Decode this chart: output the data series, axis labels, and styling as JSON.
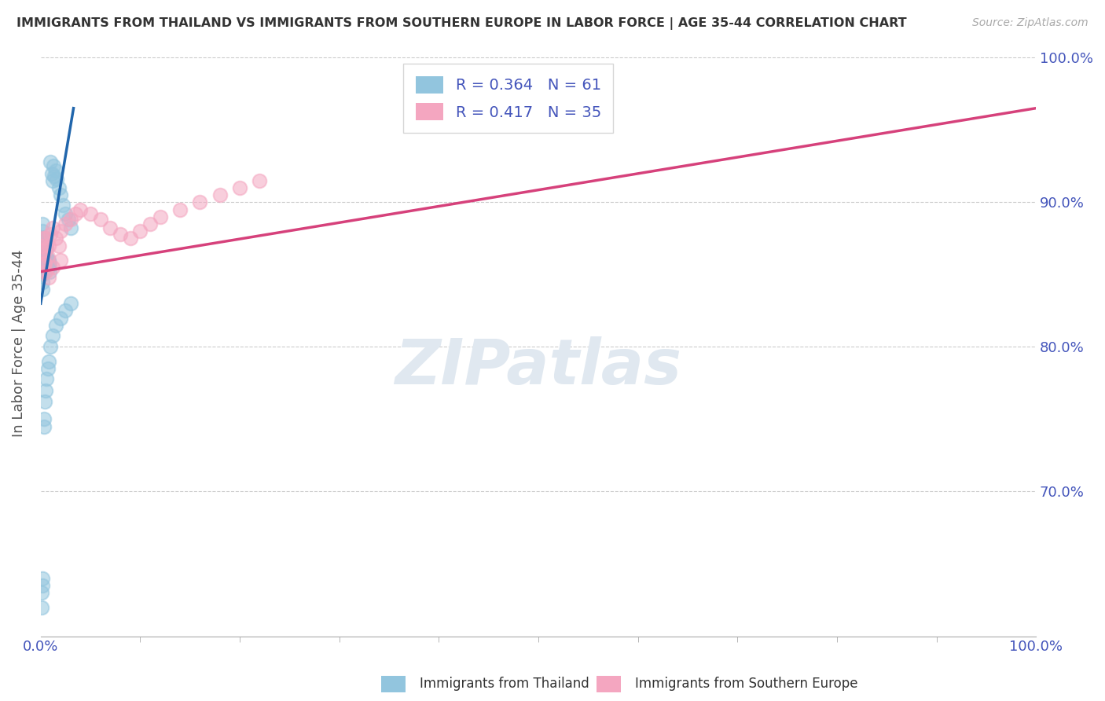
{
  "title": "IMMIGRANTS FROM THAILAND VS IMMIGRANTS FROM SOUTHERN EUROPE IN LABOR FORCE | AGE 35-44 CORRELATION CHART",
  "source": "Source: ZipAtlas.com",
  "ylabel": "In Labor Force | Age 35-44",
  "legend_label1": "Immigrants from Thailand",
  "legend_label2": "Immigrants from Southern Europe",
  "R1": 0.364,
  "N1": 61,
  "R2": 0.417,
  "N2": 35,
  "color1": "#92c5de",
  "color2": "#f4a6c0",
  "line_color1": "#2166ac",
  "line_color2": "#d6417b",
  "axis_label_color": "#4455bb",
  "xlim": [
    0.0,
    1.0
  ],
  "ylim": [
    0.6,
    1.005
  ],
  "yticks": [
    0.7,
    0.8,
    0.9,
    1.0
  ],
  "ytick_labels": [
    "70.0%",
    "80.0%",
    "90.0%",
    "100.0%"
  ],
  "xtick_labels": [
    "0.0%",
    "100.0%"
  ],
  "thailand_x": [
    0.001,
    0.001,
    0.001,
    0.002,
    0.002,
    0.002,
    0.002,
    0.002,
    0.002,
    0.002,
    0.003,
    0.003,
    0.003,
    0.003,
    0.003,
    0.004,
    0.004,
    0.004,
    0.004,
    0.005,
    0.005,
    0.005,
    0.006,
    0.006,
    0.006,
    0.007,
    0.007,
    0.008,
    0.008,
    0.009,
    0.009,
    0.01,
    0.011,
    0.012,
    0.013,
    0.014,
    0.015,
    0.016,
    0.018,
    0.02,
    0.022,
    0.025,
    0.028,
    0.03,
    0.001,
    0.001,
    0.002,
    0.002,
    0.003,
    0.003,
    0.004,
    0.005,
    0.006,
    0.007,
    0.008,
    0.01,
    0.012,
    0.015,
    0.02,
    0.025,
    0.03
  ],
  "thailand_y": [
    0.855,
    0.86,
    0.865,
    0.87,
    0.875,
    0.88,
    0.885,
    0.85,
    0.845,
    0.84,
    0.875,
    0.87,
    0.865,
    0.858,
    0.852,
    0.875,
    0.868,
    0.862,
    0.855,
    0.87,
    0.862,
    0.858,
    0.868,
    0.862,
    0.855,
    0.86,
    0.855,
    0.86,
    0.855,
    0.858,
    0.852,
    0.928,
    0.92,
    0.915,
    0.925,
    0.918,
    0.922,
    0.916,
    0.91,
    0.905,
    0.898,
    0.892,
    0.888,
    0.882,
    0.62,
    0.63,
    0.64,
    0.635,
    0.75,
    0.745,
    0.762,
    0.77,
    0.778,
    0.785,
    0.79,
    0.8,
    0.808,
    0.815,
    0.82,
    0.825,
    0.83
  ],
  "s_europe_x": [
    0.001,
    0.002,
    0.003,
    0.004,
    0.005,
    0.006,
    0.007,
    0.008,
    0.01,
    0.012,
    0.015,
    0.018,
    0.02,
    0.025,
    0.03,
    0.035,
    0.04,
    0.05,
    0.06,
    0.07,
    0.08,
    0.09,
    0.1,
    0.11,
    0.12,
    0.14,
    0.16,
    0.18,
    0.2,
    0.22,
    0.003,
    0.005,
    0.008,
    0.012,
    0.02
  ],
  "s_europe_y": [
    0.87,
    0.875,
    0.865,
    0.858,
    0.875,
    0.868,
    0.862,
    0.87,
    0.878,
    0.882,
    0.875,
    0.87,
    0.88,
    0.885,
    0.888,
    0.892,
    0.895,
    0.892,
    0.888,
    0.882,
    0.878,
    0.875,
    0.88,
    0.885,
    0.89,
    0.895,
    0.9,
    0.905,
    0.91,
    0.915,
    0.858,
    0.852,
    0.848,
    0.855,
    0.86
  ],
  "blue_line_x": [
    0.0,
    0.033
  ],
  "blue_line_y": [
    0.83,
    0.965
  ],
  "pink_line_x": [
    0.0,
    1.0
  ],
  "pink_line_y": [
    0.852,
    0.965
  ]
}
